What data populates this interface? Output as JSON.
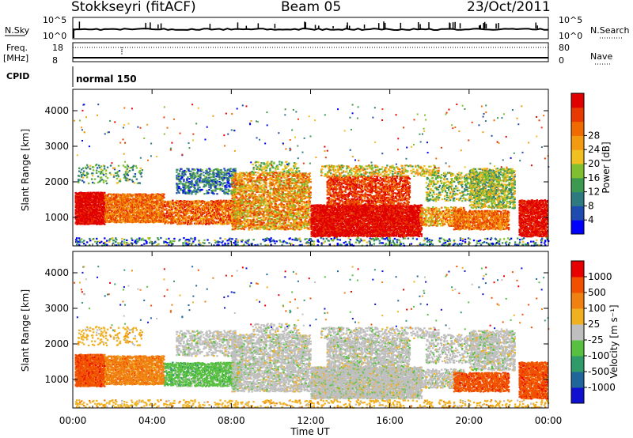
{
  "header": {
    "station": "Stokkseyri (fitACF)",
    "beam": "Beam 05",
    "date": "23/Oct/2011"
  },
  "side_labels": {
    "nsky": "N.Sky",
    "nsky_ticks": [
      "10^5",
      "10^0"
    ],
    "freq": "Freq.",
    "freq_unit": "[MHz]",
    "freq_ticks": [
      "18",
      "8"
    ],
    "cpid": "CPID",
    "nsearch": "N.Search",
    "nsearch_ticks": [
      "10^5",
      "10^0"
    ],
    "nave": "Nave",
    "nave_ticks": [
      "80",
      "0"
    ],
    "mode": "normal 150"
  },
  "chart_data": [
    {
      "type": "heatmap",
      "name": "power",
      "ylabel": "Slant Range [km]",
      "yticks": [
        "1000",
        "2000",
        "3000",
        "4000"
      ],
      "ylim": [
        200,
        4600
      ],
      "colorbar": {
        "label": "Power [dB]",
        "ticks": [
          "4",
          "8",
          "12",
          "16",
          "20",
          "24",
          "28"
        ],
        "colors": [
          "#0000ff",
          "#1e4bb0",
          "#2f7a80",
          "#3c9a50",
          "#7fbf30",
          "#f0c020",
          "#f39a10",
          "#f06a00",
          "#e83a00",
          "#e00000"
        ]
      }
    },
    {
      "type": "heatmap",
      "name": "velocity",
      "ylabel": "Slant Range [km]",
      "yticks": [
        "1000",
        "2000",
        "3000",
        "4000"
      ],
      "ylim": [
        200,
        4600
      ],
      "colorbar": {
        "label": "Velocity [m s⁻¹]",
        "ticks": [
          "1000",
          "500",
          "100",
          "25",
          "-25",
          "-100",
          "-500",
          "-1000"
        ],
        "colors": [
          "#1010d0",
          "#20669a",
          "#2f9a6a",
          "#58c040",
          "#bfbfbf",
          "#f0b020",
          "#f08010",
          "#f05000",
          "#e80000"
        ]
      }
    }
  ],
  "xaxis": {
    "label": "Time UT",
    "ticks": [
      "00:00",
      "04:00",
      "08:00",
      "12:00",
      "16:00",
      "20:00",
      "00:00"
    ]
  }
}
